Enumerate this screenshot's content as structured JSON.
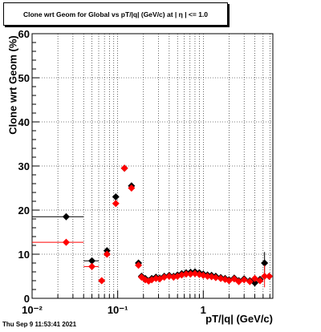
{
  "title": "Clone wrt Geom for Global vs pT/|q| (GeV/c) at |  η | <= 1.0",
  "footer": "Thu Sep  9 11:53:41 2021",
  "chart_data": {
    "type": "scatter",
    "title": "Clone wrt Geom for Global vs pT/|q| (GeV/c) at |  η | <= 1.0",
    "xlabel": "pT/|q| (GeV/c)",
    "ylabel": "Clone wrt Geom (%)",
    "xscale": "log",
    "xlim": [
      0.01,
      6.5
    ],
    "ylim": [
      0,
      60
    ],
    "xticks": [
      {
        "v": 0.01,
        "label": "10⁻²"
      },
      {
        "v": 0.1,
        "label": "10⁻¹"
      },
      {
        "v": 1,
        "label": "1"
      }
    ],
    "yticks": [
      0,
      10,
      20,
      30,
      40,
      50,
      60
    ],
    "grid": true,
    "series": [
      {
        "color": "#000000",
        "marker": "diamond",
        "points": [
          {
            "x": 0.025,
            "y": 18.5,
            "xlo": 0.01,
            "xhi": 0.04
          },
          {
            "x": 0.05,
            "y": 8.5,
            "xlo": 0.04,
            "xhi": 0.06
          },
          {
            "x": 0.075,
            "y": 10.8,
            "xlo": 0.07,
            "xhi": 0.08
          },
          {
            "x": 0.095,
            "y": 23.0,
            "xlo": 0.09,
            "xhi": 0.1
          },
          {
            "x": 0.12,
            "y": 29.5
          },
          {
            "x": 0.145,
            "y": 25.5
          },
          {
            "x": 0.175,
            "y": 8.0
          },
          {
            "x": 0.19,
            "y": 5.0
          },
          {
            "x": 0.21,
            "y": 4.5
          },
          {
            "x": 0.23,
            "y": 4.0
          },
          {
            "x": 0.25,
            "y": 4.5
          },
          {
            "x": 0.28,
            "y": 4.8
          },
          {
            "x": 0.31,
            "y": 4.6
          },
          {
            "x": 0.35,
            "y": 5.0
          },
          {
            "x": 0.4,
            "y": 5.2
          },
          {
            "x": 0.45,
            "y": 5.0
          },
          {
            "x": 0.5,
            "y": 5.3
          },
          {
            "x": 0.56,
            "y": 5.6
          },
          {
            "x": 0.63,
            "y": 5.8
          },
          {
            "x": 0.71,
            "y": 5.9
          },
          {
            "x": 0.8,
            "y": 6.0
          },
          {
            "x": 0.9,
            "y": 5.8
          },
          {
            "x": 1.0,
            "y": 5.5
          },
          {
            "x": 1.12,
            "y": 5.3
          },
          {
            "x": 1.25,
            "y": 5.2
          },
          {
            "x": 1.4,
            "y": 5.0
          },
          {
            "x": 1.6,
            "y": 4.7
          },
          {
            "x": 1.8,
            "y": 4.5
          },
          {
            "x": 2.0,
            "y": 4.2
          },
          {
            "x": 2.3,
            "y": 4.6
          },
          {
            "x": 2.6,
            "y": 4.0
          },
          {
            "x": 3.0,
            "y": 4.4
          },
          {
            "x": 3.5,
            "y": 4.0
          },
          {
            "x": 4.0,
            "y": 3.5
          },
          {
            "x": 4.6,
            "y": 4.3
          },
          {
            "x": 5.2,
            "y": 8.0,
            "err": 2.5
          },
          {
            "x": 5.9,
            "y": 5.0
          }
        ]
      },
      {
        "color": "#ff0000",
        "marker": "diamond",
        "points": [
          {
            "x": 0.025,
            "y": 12.7,
            "xlo": 0.01,
            "xhi": 0.04
          },
          {
            "x": 0.05,
            "y": 7.2,
            "xlo": 0.04,
            "xhi": 0.06
          },
          {
            "x": 0.065,
            "y": 4.0
          },
          {
            "x": 0.075,
            "y": 10.0,
            "xlo": 0.07,
            "xhi": 0.08
          },
          {
            "x": 0.095,
            "y": 21.5,
            "xlo": 0.09,
            "xhi": 0.1
          },
          {
            "x": 0.12,
            "y": 29.5
          },
          {
            "x": 0.145,
            "y": 25.0
          },
          {
            "x": 0.175,
            "y": 7.5
          },
          {
            "x": 0.19,
            "y": 4.8
          },
          {
            "x": 0.21,
            "y": 4.2
          },
          {
            "x": 0.23,
            "y": 3.9
          },
          {
            "x": 0.25,
            "y": 4.2
          },
          {
            "x": 0.28,
            "y": 4.5
          },
          {
            "x": 0.31,
            "y": 4.4
          },
          {
            "x": 0.35,
            "y": 4.8
          },
          {
            "x": 0.4,
            "y": 5.0
          },
          {
            "x": 0.45,
            "y": 4.8
          },
          {
            "x": 0.5,
            "y": 5.0
          },
          {
            "x": 0.56,
            "y": 5.3
          },
          {
            "x": 0.63,
            "y": 5.5
          },
          {
            "x": 0.71,
            "y": 5.5
          },
          {
            "x": 0.8,
            "y": 5.6
          },
          {
            "x": 0.9,
            "y": 5.4
          },
          {
            "x": 1.0,
            "y": 5.2
          },
          {
            "x": 1.12,
            "y": 5.0
          },
          {
            "x": 1.25,
            "y": 4.9
          },
          {
            "x": 1.4,
            "y": 4.7
          },
          {
            "x": 1.6,
            "y": 4.5
          },
          {
            "x": 1.8,
            "y": 4.3
          },
          {
            "x": 2.0,
            "y": 4.0
          },
          {
            "x": 2.3,
            "y": 4.4
          },
          {
            "x": 2.6,
            "y": 3.8
          },
          {
            "x": 3.0,
            "y": 4.2
          },
          {
            "x": 3.5,
            "y": 3.8
          },
          {
            "x": 4.0,
            "y": 4.5
          },
          {
            "x": 4.6,
            "y": 4.0
          },
          {
            "x": 5.2,
            "y": 5.0,
            "err": 2.5
          },
          {
            "x": 5.9,
            "y": 5.0
          }
        ]
      }
    ]
  }
}
